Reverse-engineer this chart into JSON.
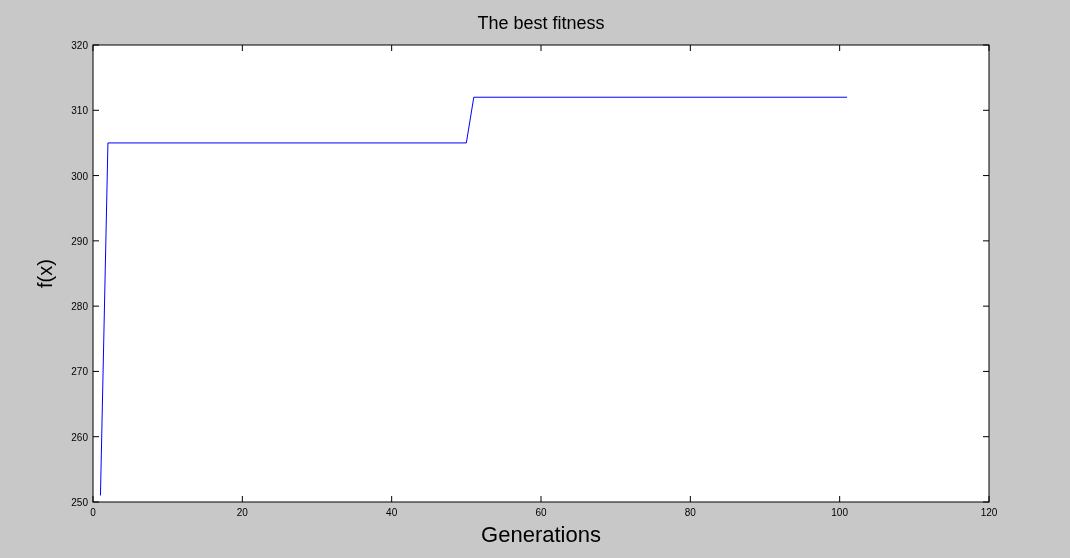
{
  "chart_data": {
    "type": "line",
    "title": "The best fitness",
    "xlabel": "Generations",
    "ylabel": "f(x)",
    "x": [
      1,
      2,
      50,
      51,
      101
    ],
    "series": [
      {
        "color": "#0000ff",
        "values": [
          251,
          305,
          305,
          312,
          312
        ]
      }
    ],
    "xlim": [
      0,
      120
    ],
    "xticks": [
      0,
      20,
      40,
      60,
      80,
      100,
      120
    ],
    "ylim": [
      250,
      320
    ],
    "yticks": [
      250,
      260,
      270,
      280,
      290,
      300,
      310,
      320
    ],
    "grid": false
  }
}
